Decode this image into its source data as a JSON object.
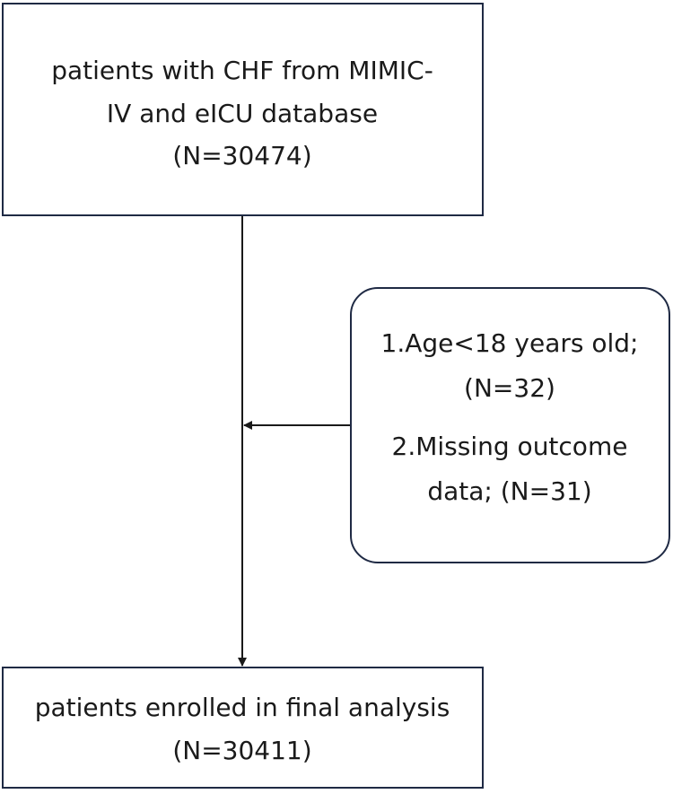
{
  "nodes": [
    {
      "lines": [
        "patients with CHF from MIMIC-",
        "IV and eICU database",
        "(N=30474)"
      ]
    },
    {
      "lines": [
        "1.Age<18 years old;",
        "(N=32)",
        "2.Missing outcome",
        "data; (N=31)"
      ]
    },
    {
      "lines": [
        "patients enrolled in final analysis",
        "(N=30411)"
      ]
    }
  ]
}
